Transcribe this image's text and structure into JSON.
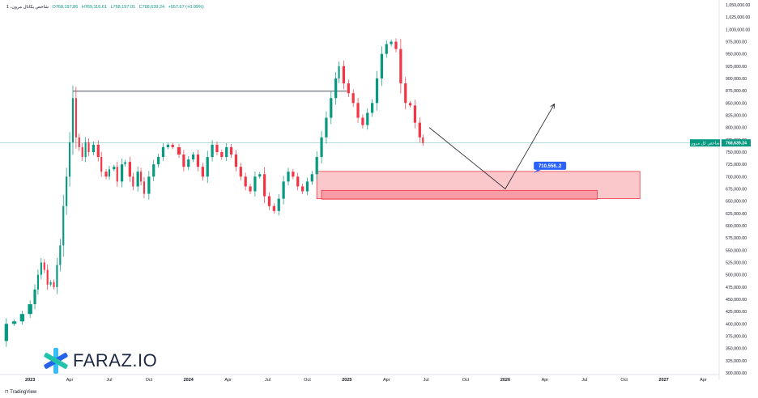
{
  "header": {
    "symbol": "شاخص یکانال مرون، 1",
    "o": "O768,197.86",
    "h": "H769,116.61",
    "l": "L768,197.01",
    "c": "C768,639.24",
    "chg": "+557.67 (+0.09%)"
  },
  "watermark": {
    "text": "FARAZ.IO"
  },
  "footer": {
    "brand": "TradingView"
  },
  "colors": {
    "up": "#089981",
    "down": "#f23645",
    "zone": "#f7a1a8",
    "zone_border": "#f23645",
    "tag": "#2962ff",
    "price_tag": "#089981"
  },
  "chart_data": {
    "type": "candlestick",
    "interval": "weekly",
    "ylim": [
      300000,
      1050000
    ],
    "y_ticks": [
      300000,
      325000,
      350000,
      375000,
      400000,
      425000,
      450000,
      475000,
      500000,
      525000,
      550000,
      575000,
      600000,
      625000,
      650000,
      675000,
      700000,
      725000,
      750000,
      775000,
      800000,
      825000,
      850000,
      875000,
      900000,
      925000,
      950000,
      975000,
      1000000,
      1025000,
      1050000
    ],
    "y_tick_labels": [
      "300,000.00",
      "325,000.00",
      "350,000.00",
      "375,000.00",
      "400,000.00",
      "425,000.00",
      "450,000.00",
      "475,000.00",
      "500,000.00",
      "525,000.00",
      "550,000.00",
      "575,000.00",
      "600,000.00",
      "625,000.00",
      "650,000.00",
      "675,000.00",
      "700,000.00",
      "725,000.00",
      "750,000.00",
      "775,000.00",
      "800,000.00",
      "825,000.00",
      "850,000.00",
      "875,000.00",
      "900,000.00",
      "925,000.00",
      "950,000.00",
      "975,000.00",
      "1,000,000.00",
      "1,025,000.00",
      "1,050,000.00"
    ],
    "x_ticks": [
      {
        "label": "2023",
        "t": 2023.0,
        "bold": true
      },
      {
        "label": "Apr",
        "t": 2023.25
      },
      {
        "label": "Jul",
        "t": 2023.5
      },
      {
        "label": "Oct",
        "t": 2023.75
      },
      {
        "label": "2024",
        "t": 2024.0,
        "bold": true
      },
      {
        "label": "Apr",
        "t": 2024.25
      },
      {
        "label": "Jul",
        "t": 2024.5
      },
      {
        "label": "Oct",
        "t": 2024.75
      },
      {
        "label": "2025",
        "t": 2025.0,
        "bold": true
      },
      {
        "label": "Apr",
        "t": 2025.25
      },
      {
        "label": "Jul",
        "t": 2025.5
      },
      {
        "label": "Oct",
        "t": 2025.75
      },
      {
        "label": "2026",
        "t": 2026.0,
        "bold": true
      },
      {
        "label": "Apr",
        "t": 2026.25
      },
      {
        "label": "Jul",
        "t": 2026.5
      },
      {
        "label": "Oct",
        "t": 2026.75
      },
      {
        "label": "2027",
        "t": 2027.0,
        "bold": true
      },
      {
        "label": "Apr",
        "t": 2027.25
      }
    ],
    "close_path": [
      [
        2022.81,
        365000
      ],
      [
        2022.85,
        400000
      ],
      [
        2022.9,
        405000
      ],
      [
        2022.95,
        420000
      ],
      [
        2023.0,
        440000
      ],
      [
        2023.03,
        470000
      ],
      [
        2023.05,
        500000
      ],
      [
        2023.07,
        525000
      ],
      [
        2023.09,
        510000
      ],
      [
        2023.11,
        480000
      ],
      [
        2023.13,
        485000
      ],
      [
        2023.15,
        475000
      ],
      [
        2023.17,
        520000
      ],
      [
        2023.19,
        560000
      ],
      [
        2023.21,
        640000
      ],
      [
        2023.23,
        700000
      ],
      [
        2023.25,
        770000
      ],
      [
        2023.27,
        860000
      ],
      [
        2023.29,
        780000
      ],
      [
        2023.31,
        760000
      ],
      [
        2023.33,
        740000
      ],
      [
        2023.35,
        770000
      ],
      [
        2023.37,
        750000
      ],
      [
        2023.4,
        765000
      ],
      [
        2023.43,
        740000
      ],
      [
        2023.45,
        710000
      ],
      [
        2023.48,
        700000
      ],
      [
        2023.5,
        715000
      ],
      [
        2023.53,
        720000
      ],
      [
        2023.55,
        690000
      ],
      [
        2023.58,
        725000
      ],
      [
        2023.6,
        730000
      ],
      [
        2023.63,
        700000
      ],
      [
        2023.65,
        680000
      ],
      [
        2023.68,
        710000
      ],
      [
        2023.7,
        690000
      ],
      [
        2023.72,
        665000
      ],
      [
        2023.75,
        700000
      ],
      [
        2023.78,
        725000
      ],
      [
        2023.81,
        740000
      ],
      [
        2023.84,
        760000
      ],
      [
        2023.87,
        765000
      ],
      [
        2023.9,
        760000
      ],
      [
        2023.94,
        745000
      ],
      [
        2023.97,
        720000
      ],
      [
        2024.0,
        735000
      ],
      [
        2024.03,
        745000
      ],
      [
        2024.06,
        720000
      ],
      [
        2024.09,
        700000
      ],
      [
        2024.12,
        740000
      ],
      [
        2024.15,
        765000
      ],
      [
        2024.18,
        750000
      ],
      [
        2024.21,
        740000
      ],
      [
        2024.24,
        760000
      ],
      [
        2024.27,
        745000
      ],
      [
        2024.3,
        720000
      ],
      [
        2024.33,
        700000
      ],
      [
        2024.36,
        680000
      ],
      [
        2024.39,
        670000
      ],
      [
        2024.42,
        700000
      ],
      [
        2024.45,
        705000
      ],
      [
        2024.48,
        660000
      ],
      [
        2024.51,
        640000
      ],
      [
        2024.54,
        630000
      ],
      [
        2024.57,
        655000
      ],
      [
        2024.6,
        690000
      ],
      [
        2024.63,
        710000
      ],
      [
        2024.66,
        700000
      ],
      [
        2024.69,
        680000
      ],
      [
        2024.72,
        670000
      ],
      [
        2024.75,
        690000
      ],
      [
        2024.78,
        705000
      ],
      [
        2024.81,
        740000
      ],
      [
        2024.84,
        780000
      ],
      [
        2024.87,
        820000
      ],
      [
        2024.9,
        860000
      ],
      [
        2024.93,
        900000
      ],
      [
        2024.95,
        925000
      ],
      [
        2024.98,
        890000
      ],
      [
        2025.01,
        870000
      ],
      [
        2025.04,
        850000
      ],
      [
        2025.07,
        820000
      ],
      [
        2025.1,
        805000
      ],
      [
        2025.13,
        830000
      ],
      [
        2025.16,
        850000
      ],
      [
        2025.19,
        900000
      ],
      [
        2025.22,
        950000
      ],
      [
        2025.25,
        970000
      ],
      [
        2025.28,
        975000
      ],
      [
        2025.31,
        960000
      ],
      [
        2025.34,
        890000
      ],
      [
        2025.37,
        850000
      ],
      [
        2025.4,
        845000
      ],
      [
        2025.43,
        810000
      ],
      [
        2025.46,
        780000
      ],
      [
        2025.48,
        768639
      ]
    ],
    "candles_by_date": "close_path approximates the visible weekly candles",
    "annotations": {
      "resistance_line": {
        "value": 874000,
        "from": 2023.27,
        "to": 2025.0
      },
      "demand_zone_outer": {
        "from": 2024.81,
        "to": 2026.85,
        "top": 710556,
        "bottom": 655000
      },
      "demand_zone_inner": {
        "from": 2024.84,
        "to": 2026.58,
        "top": 672000,
        "bottom": 654000
      },
      "zone_tag": "710,556..2",
      "projection": [
        [
          2025.52,
          800000
        ],
        [
          2026.0,
          675000
        ],
        [
          2026.31,
          848000
        ]
      ]
    },
    "last_price": 768639.24,
    "last_price_label": "768,639.24",
    "last_price_name": "شاخص کل مرون"
  }
}
